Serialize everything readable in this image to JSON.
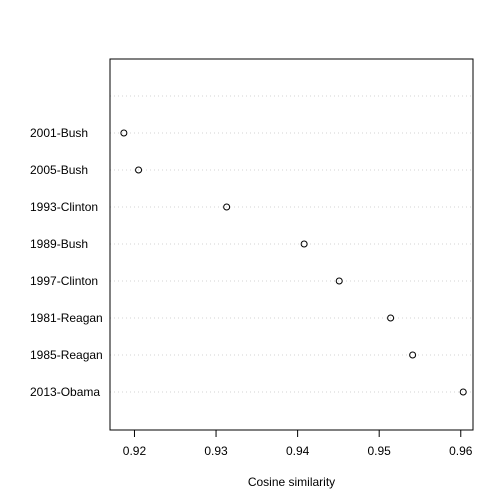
{
  "chart_data": {
    "type": "scatter",
    "title": "",
    "xlabel": "Cosine similarity",
    "ylabel": "",
    "categories": [
      "2001-Bush",
      "2005-Bush",
      "1993-Clinton",
      "1989-Bush",
      "1997-Clinton",
      "1981-Reagan",
      "1985-Reagan",
      "2013-Obama"
    ],
    "values": [
      0.9187,
      0.9205,
      0.9313,
      0.9408,
      0.9451,
      0.9514,
      0.9541,
      0.9603
    ],
    "xlim": [
      0.917,
      0.9615
    ],
    "xticks": [
      "0.92",
      "0.93",
      "0.94",
      "0.95",
      "0.96"
    ],
    "grid": "horizontal-dotted",
    "colors": {
      "points": "#000000",
      "grid": "#d3d3d3",
      "frame": "#000000"
    }
  }
}
